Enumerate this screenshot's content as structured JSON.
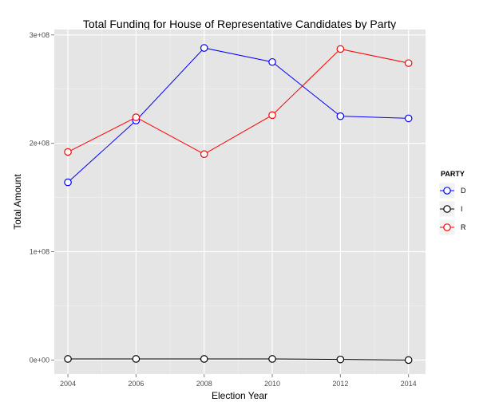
{
  "chart_data": {
    "type": "line",
    "title": "Total Funding for House of Representative Candidates by Party",
    "xlabel": "Election Year",
    "ylabel": "Total Amount",
    "x": [
      2004,
      2006,
      2008,
      2010,
      2012,
      2014
    ],
    "x_tick_labels": [
      "2004",
      "2006",
      "2008",
      "2010",
      "2012",
      "2014"
    ],
    "xlim": [
      2003.6,
      2014.5
    ],
    "y_ticks": [
      0,
      100000000,
      200000000,
      300000000
    ],
    "y_tick_labels": [
      "0e+00",
      "1e+08",
      "2e+08",
      "3e+08"
    ],
    "ylim": [
      -13000000,
      305000000
    ],
    "grid": true,
    "legend_title": "PARTY",
    "legend_position": "right",
    "series": [
      {
        "name": "D",
        "color": "#0000ff",
        "values": [
          164000000,
          221000000,
          288000000,
          275000000,
          225000000,
          223000000
        ]
      },
      {
        "name": "I",
        "color": "#000000",
        "values": [
          1000000,
          1000000,
          1000000,
          1000000,
          500000,
          0
        ]
      },
      {
        "name": "R",
        "color": "#ff0000",
        "values": [
          192000000,
          224000000,
          190000000,
          226000000,
          287000000,
          274000000
        ]
      }
    ]
  }
}
